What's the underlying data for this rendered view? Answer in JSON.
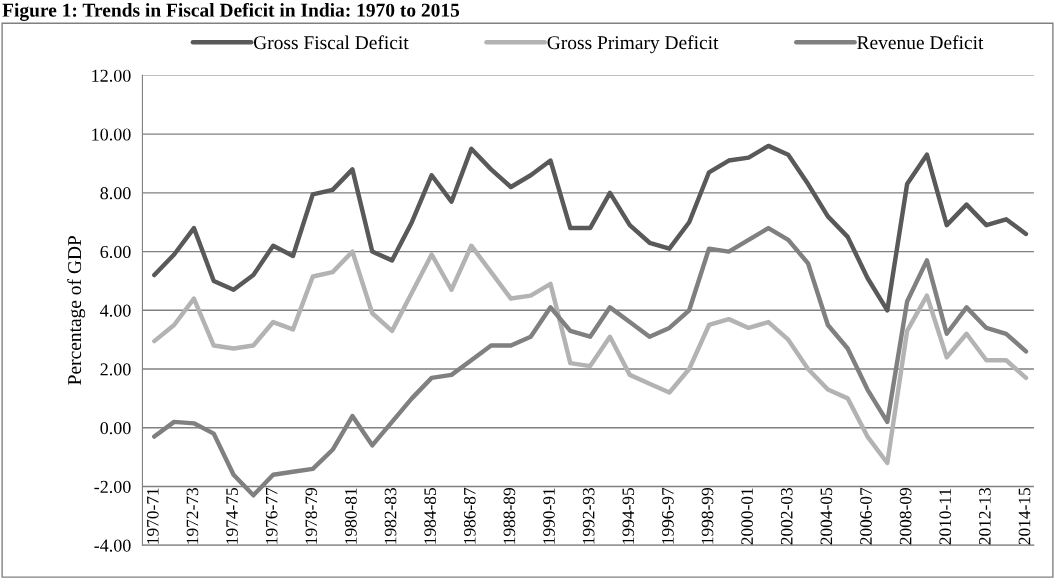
{
  "chart_data": {
    "type": "line",
    "title": "Figure 1: Trends in Fiscal Deficit in India: 1970 to 2015",
    "ylabel": "Percentage of GDP",
    "categories": [
      "1970-71",
      null,
      "1972-73",
      null,
      "1974-75",
      null,
      "1976-77",
      null,
      "1978-79",
      null,
      "1980-81",
      null,
      "1982-83",
      null,
      "1984-85",
      null,
      "1986-87",
      null,
      "1988-89",
      null,
      "1990-91",
      null,
      "1992-93",
      null,
      "1994-95",
      null,
      "1996-97",
      null,
      "1998-99",
      null,
      "2000-01",
      null,
      "2002-03",
      null,
      "2004-05",
      null,
      "2006-07",
      null,
      "2008-09",
      null,
      "2010-11",
      null,
      "2012-13",
      null,
      "2014-15"
    ],
    "series": [
      {
        "name": "Gross Fiscal Deficit",
        "color": "#595959",
        "values": [
          5.2,
          5.9,
          6.8,
          5.0,
          4.7,
          5.2,
          6.2,
          5.85,
          7.95,
          8.1,
          8.8,
          6.0,
          5.7,
          7.0,
          8.6,
          7.7,
          9.5,
          8.8,
          8.2,
          8.6,
          9.1,
          6.8,
          6.8,
          8.0,
          6.9,
          6.3,
          6.1,
          7.0,
          8.7,
          9.1,
          9.2,
          9.6,
          9.3,
          8.3,
          7.2,
          6.5,
          5.1,
          4.0,
          8.3,
          9.3,
          6.9,
          7.6,
          6.9,
          7.1,
          6.6
        ]
      },
      {
        "name": "Gross Primary Deficit",
        "color": "#b3b3b3",
        "values": [
          2.95,
          3.5,
          4.4,
          2.8,
          2.7,
          2.8,
          3.6,
          3.35,
          5.15,
          5.3,
          6.0,
          3.9,
          3.3,
          4.6,
          5.9,
          4.7,
          6.2,
          5.3,
          4.4,
          4.5,
          4.9,
          2.2,
          2.1,
          3.1,
          1.8,
          1.5,
          1.2,
          2.0,
          3.5,
          3.7,
          3.4,
          3.6,
          3.0,
          2.0,
          1.3,
          1.0,
          -0.3,
          -1.2,
          3.3,
          4.5,
          2.4,
          3.2,
          2.3,
          2.3,
          1.7
        ]
      },
      {
        "name": "Revenue Deficit",
        "color": "#808080",
        "values": [
          -0.3,
          0.2,
          0.15,
          -0.2,
          -1.6,
          -2.3,
          -1.6,
          -1.5,
          -1.4,
          -0.75,
          0.4,
          -0.6,
          0.2,
          1.0,
          1.7,
          1.8,
          2.3,
          2.8,
          2.8,
          3.1,
          4.1,
          3.3,
          3.1,
          4.1,
          3.6,
          3.1,
          3.4,
          4.0,
          6.1,
          6.0,
          6.4,
          6.8,
          6.4,
          5.6,
          3.5,
          2.7,
          1.3,
          0.2,
          4.3,
          5.7,
          3.2,
          4.1,
          3.4,
          3.2,
          2.6
        ]
      }
    ],
    "ylim": [
      -4,
      12
    ],
    "yticks": [
      {
        "value": -4,
        "label": "-4.00"
      },
      {
        "value": -2,
        "label": "-2.00"
      },
      {
        "value": 0,
        "label": "0.00"
      },
      {
        "value": 2,
        "label": "2.00"
      },
      {
        "value": 4,
        "label": "4.00"
      },
      {
        "value": 6,
        "label": "6.00"
      },
      {
        "value": 8,
        "label": "8.00"
      },
      {
        "value": 10,
        "label": "10.00"
      },
      {
        "value": 12,
        "label": "12.00"
      }
    ],
    "grid": "y",
    "legend": "top",
    "marker": "none",
    "line_style": "solid"
  }
}
